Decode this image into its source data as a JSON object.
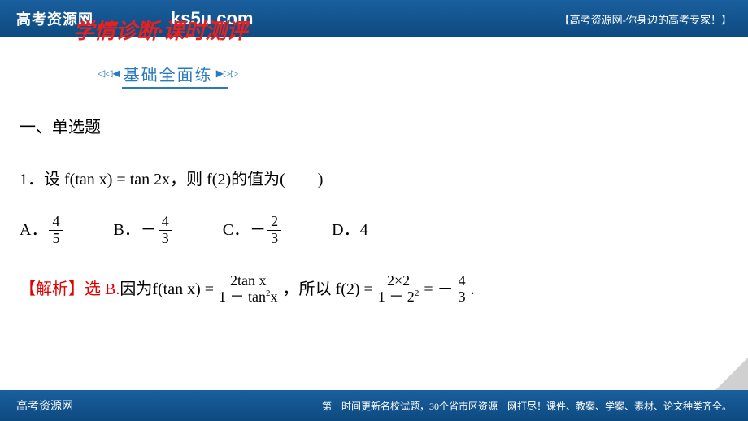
{
  "header": {
    "site_name": "高考资源网",
    "url": "ks5u.com",
    "tagline": "【高考资源网-你身边的高考专家！】"
  },
  "title": {
    "part1": "学情诊断",
    "dot": "·",
    "part2": "课时测评"
  },
  "subtitle": {
    "arrows_left": "◁◁◀",
    "text": "基础全面练",
    "arrows_right": "▶▷▷"
  },
  "section_title": "一、单选题",
  "q": {
    "num": "1．",
    "pre": "设 f(tan x) = tan 2x，则 f(2)的值为(",
    "blank": "　　",
    "post": ")"
  },
  "opts": {
    "A_label": "A．",
    "A_num": "4",
    "A_den": "5",
    "B_label": "B．",
    "B_neg": "－",
    "B_num": "4",
    "B_den": "3",
    "C_label": "C．",
    "C_neg": "－",
    "C_num": "2",
    "C_den": "3",
    "D_label": "D．",
    "D_val": "4"
  },
  "ans": {
    "tag": "【解析】",
    "sel": "选 B.",
    "t1": "因为f(tan x) = ",
    "f1_num": "2tan x",
    "f1_den_a": "1 － tan",
    "f1_den_sup": "2",
    "f1_den_b": "x",
    "t2": " ，所以 f(2) = ",
    "f2_num": "2×2",
    "f2_den_a": "1 － 2",
    "f2_den_sup": "2",
    "t3": "  =  －",
    "f3_num": "4",
    "f3_den": "3",
    "t4": " ."
  },
  "footer": {
    "left": "高考资源网",
    "right": "第一时间更新名校试题，30个省市区资源一网打尽！课件、教案、学案、素材、论文种类齐全。"
  },
  "colors": {
    "brand_blue": "#2a7ac0",
    "header_bg": "#0d4a7f",
    "red": "#e00000",
    "title_red": "#e82020"
  }
}
